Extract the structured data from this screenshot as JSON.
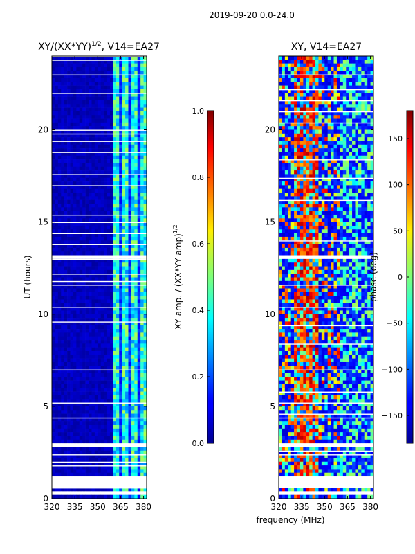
{
  "figure": {
    "suptitle": "2019-09-20 0.0-24.0",
    "xlabel_shared": "frequency (MHz)"
  },
  "chart_data": [
    {
      "type": "heatmap",
      "title_main": "XY/(XX*YY)",
      "title_sup": "1/2",
      "title_tail": ", V14=EA27",
      "xlabel": "",
      "ylabel": "UT (hours)",
      "xlim": [
        320,
        382
      ],
      "ylim": [
        0,
        24
      ],
      "xticks": [
        320,
        335,
        350,
        365,
        380
      ],
      "yticks": [
        0,
        5,
        10,
        15,
        20
      ],
      "colorbar": {
        "label_main": "XY amp. / (XX*YY amp)",
        "label_sup": "1/2",
        "range": [
          0.0,
          1.0
        ],
        "ticks": [
          "0.0",
          "0.2",
          "0.4",
          "0.6",
          "0.8",
          "1.0"
        ],
        "tick_values": [
          0,
          0.2,
          0.4,
          0.6,
          0.8,
          1.0
        ]
      },
      "band_edge_mhz": 360,
      "gap_intervals_hours": [
        [
          0.15,
          0.4
        ],
        [
          0.55,
          1.15
        ],
        [
          2.85,
          3.0
        ],
        [
          12.95,
          13.1
        ]
      ]
    },
    {
      "type": "heatmap",
      "title": "XY, V14=EA27",
      "xlabel": "",
      "ylabel": "",
      "xlim": [
        320,
        382
      ],
      "ylim": [
        0,
        24
      ],
      "xticks": [
        320,
        335,
        350,
        365,
        380
      ],
      "yticks": [
        0,
        5,
        10,
        15,
        20
      ],
      "colorbar": {
        "label": "phase (deg)",
        "range": [
          -180,
          180
        ],
        "ticks": [
          "−150",
          "−100",
          "−50",
          "0",
          "50",
          "100",
          "150"
        ],
        "tick_values": [
          -150,
          -100,
          -50,
          0,
          50,
          100,
          150
        ]
      },
      "band_edge_mhz": 360,
      "gap_intervals_hours": [
        [
          0.15,
          0.4
        ],
        [
          0.55,
          1.15
        ],
        [
          2.85,
          3.0
        ],
        [
          12.95,
          13.1
        ]
      ]
    }
  ],
  "colors": {
    "background": "#ffffff",
    "axis": "#000000",
    "gap": "#ffffff",
    "low": "#00008f",
    "high": "#800000"
  }
}
